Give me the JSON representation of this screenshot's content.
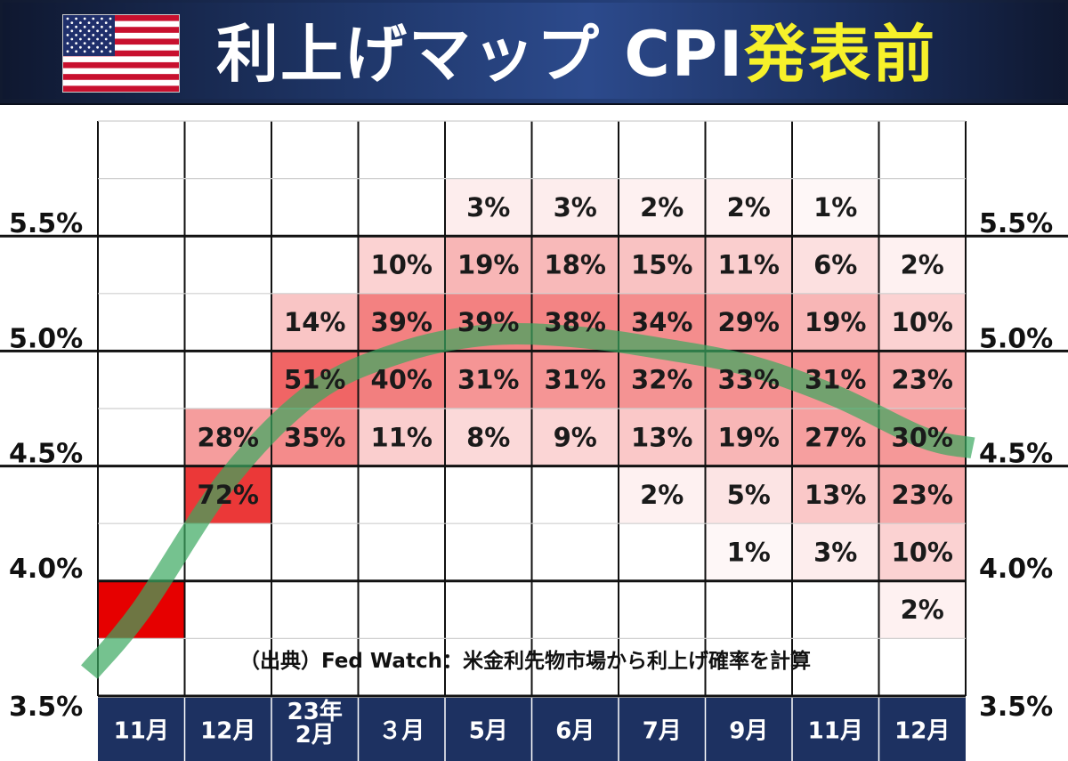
{
  "header": {
    "title_main": "利上げマップ CPI",
    "title_highlight": "発表前",
    "flag_icon": "us-flag-icon"
  },
  "source_note": "（出典）Fed Watch：米金利先物市場から利上げ確率を計算",
  "chart_data": {
    "type": "heatmap",
    "categories": [
      "11月",
      "12月",
      "23年\n2月",
      "３月",
      "5月",
      "6月",
      "7月",
      "9月",
      "11月",
      "12月"
    ],
    "y_ticks": [
      "5.5%",
      "5.0%",
      "4.5%",
      "4.0%",
      "3.5%"
    ],
    "rate_bands": [
      "5.75-6.00",
      "5.50-5.75",
      "5.25-5.50",
      "5.00-5.25",
      "4.75-5.00",
      "4.50-4.75",
      "4.25-4.50",
      "4.00-4.25",
      "3.75-4.00",
      "3.50-3.75"
    ],
    "values": [
      [
        null,
        null,
        null,
        null,
        null,
        null,
        null,
        null,
        null,
        null
      ],
      [
        null,
        null,
        null,
        null,
        3,
        3,
        2,
        2,
        1,
        null
      ],
      [
        null,
        null,
        null,
        10,
        19,
        18,
        15,
        11,
        6,
        2
      ],
      [
        null,
        null,
        14,
        39,
        39,
        38,
        34,
        29,
        19,
        10
      ],
      [
        null,
        null,
        51,
        40,
        31,
        31,
        32,
        33,
        31,
        23
      ],
      [
        null,
        28,
        35,
        11,
        8,
        9,
        13,
        19,
        27,
        30
      ],
      [
        null,
        72,
        null,
        null,
        null,
        null,
        2,
        5,
        13,
        23
      ],
      [
        null,
        null,
        null,
        null,
        null,
        null,
        null,
        1,
        3,
        10
      ],
      [
        100,
        null,
        null,
        null,
        null,
        null,
        null,
        null,
        null,
        2
      ],
      [
        null,
        null,
        null,
        null,
        null,
        null,
        null,
        null,
        null,
        null
      ]
    ],
    "colors": {
      "max": "#e60000",
      "min": "#ffffff",
      "trend": "#3aa860",
      "axis_bar": "#1d3161"
    }
  }
}
